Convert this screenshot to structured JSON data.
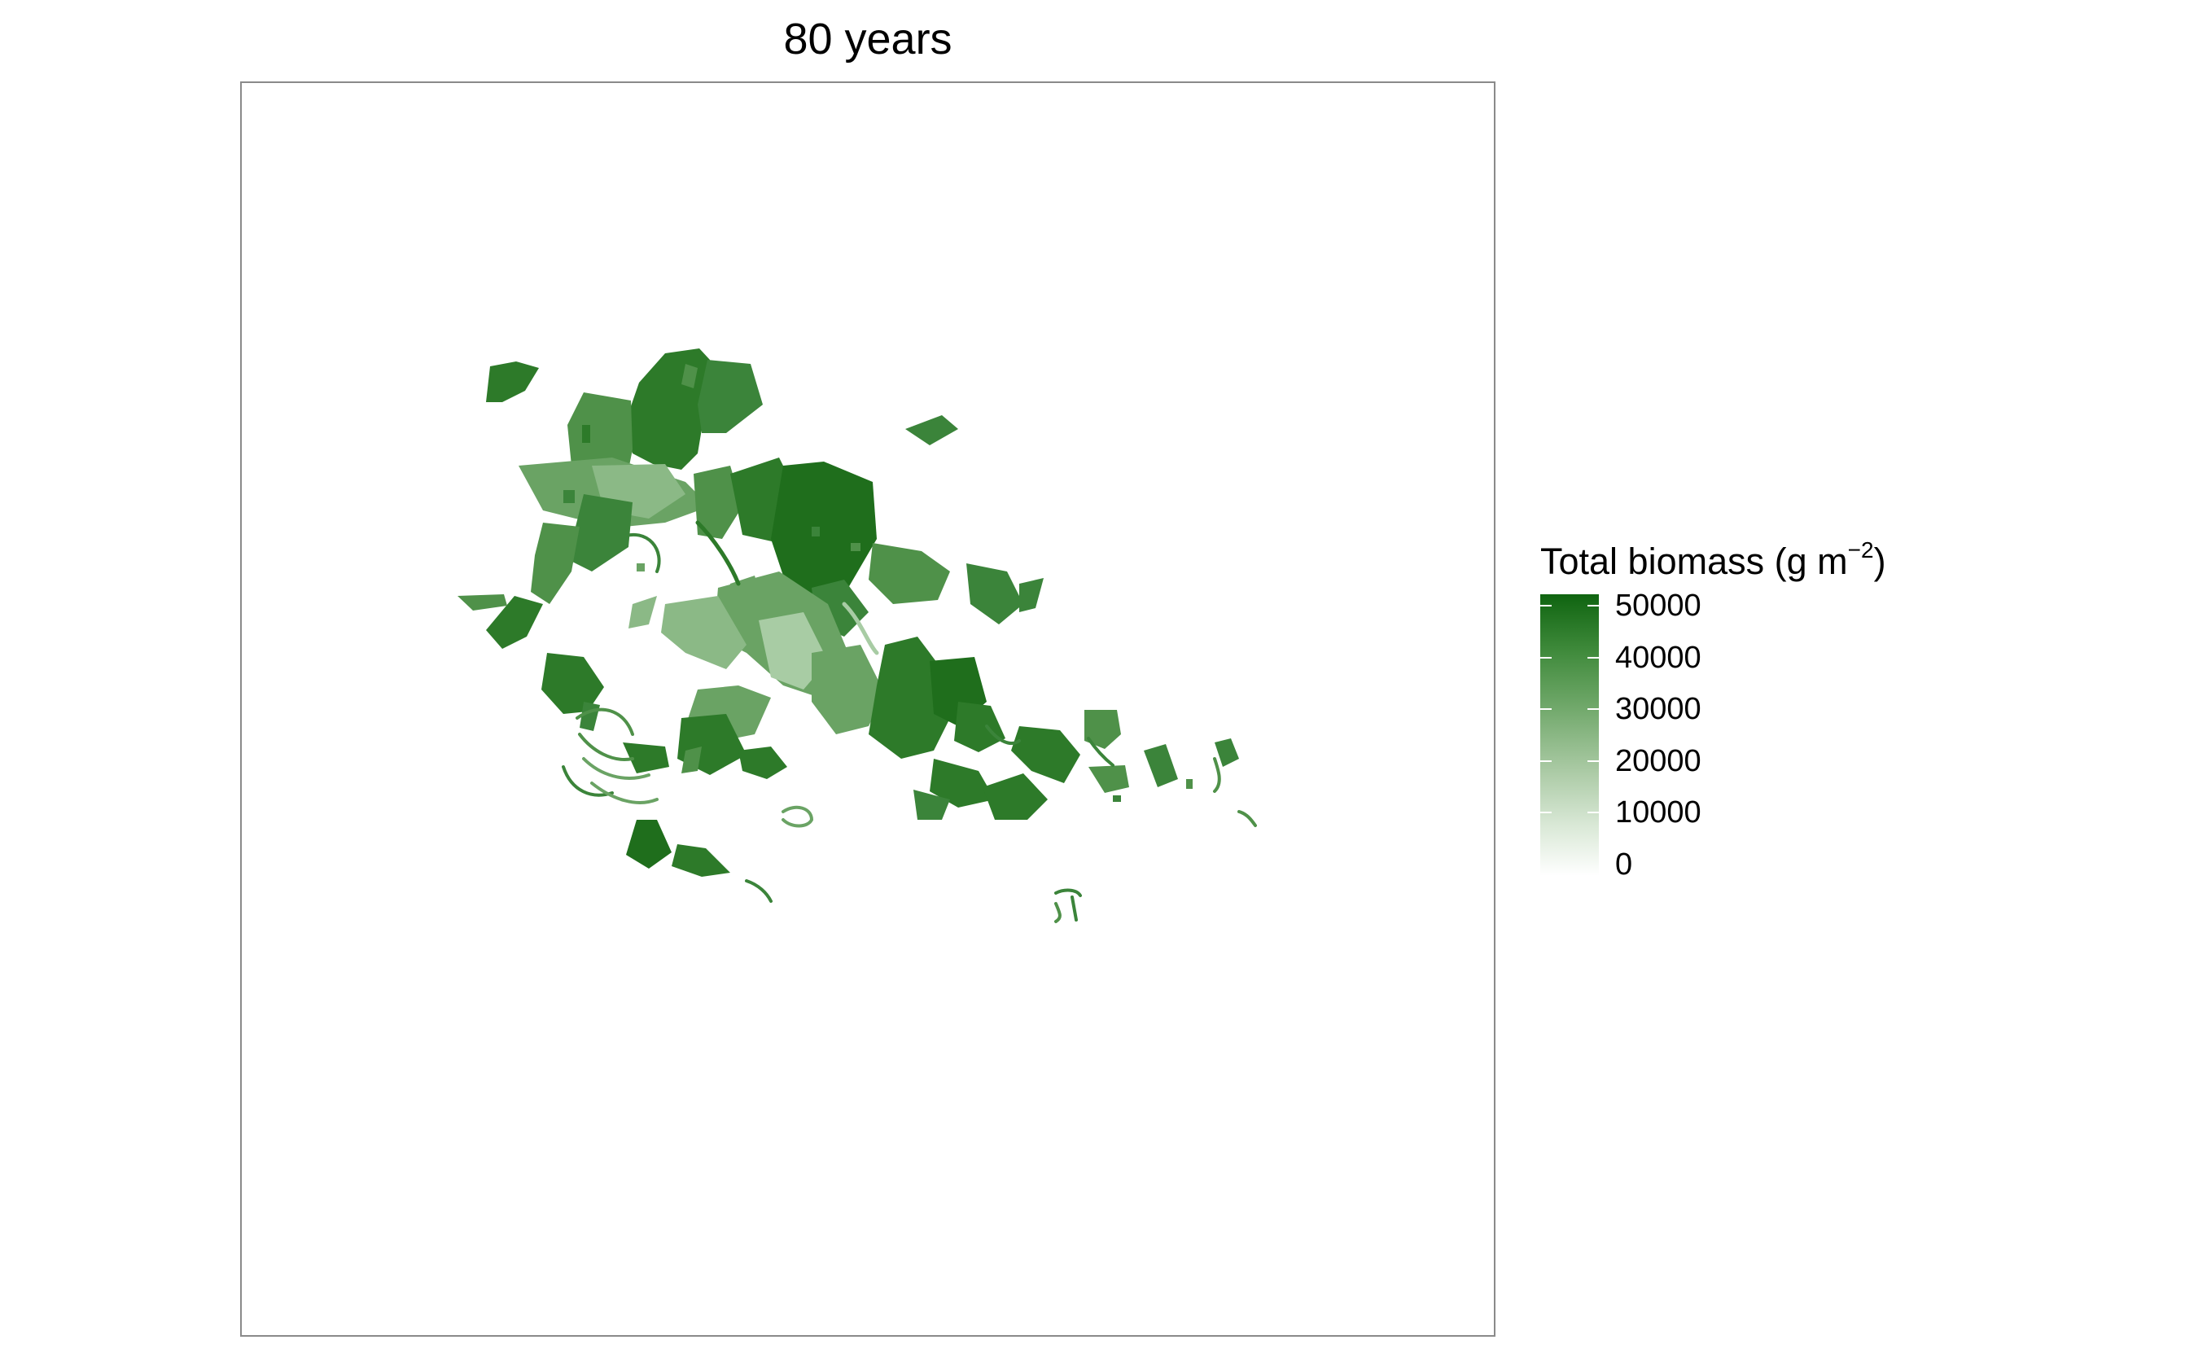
{
  "title": "80 years",
  "legend": {
    "title_main": "Total biomass (g m",
    "title_sup": "−2",
    "title_close": ")",
    "min": 0,
    "max": 50000,
    "low_color": "#ffffff",
    "high_color": "#0f6410",
    "ticks": [
      {
        "value": 50000,
        "label": "50000"
      },
      {
        "value": 40000,
        "label": "40000"
      },
      {
        "value": 30000,
        "label": "30000"
      },
      {
        "value": 20000,
        "label": "20000"
      },
      {
        "value": 10000,
        "label": "10000"
      },
      {
        "value": 0,
        "label": "0"
      }
    ]
  },
  "map": {
    "panel_border_color": "#8a8a8a",
    "fill_palette": [
      "#1f6e1c",
      "#2d7a29",
      "#3b843a",
      "#4f9149",
      "#6aa364",
      "#8bb986",
      "#a8cca4"
    ]
  }
}
